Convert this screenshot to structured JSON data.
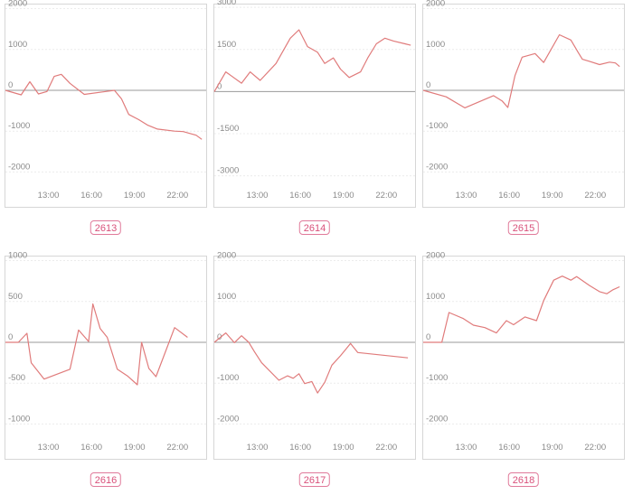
{
  "chart_data": [
    {
      "type": "line",
      "code": "2613",
      "ylim": [
        -2300,
        2100
      ],
      "yticks": [
        2000,
        1000,
        0,
        -1000,
        -2000
      ],
      "xlim": [
        10,
        24
      ],
      "xticks": [
        "13:00",
        "16:00",
        "19:00",
        "22:00"
      ],
      "grid": true,
      "line_color": "#e07b7b",
      "x": [
        10,
        11.1,
        11.7,
        12.3,
        12.9,
        13.4,
        13.9,
        14.5,
        15.5,
        17,
        17.6,
        18.1,
        18.6,
        19.3,
        19.9,
        20.6,
        21.8,
        22.4,
        23.3,
        23.7
      ],
      "y": [
        0,
        -110,
        210,
        -90,
        -30,
        340,
        390,
        170,
        -100,
        -30,
        0,
        -210,
        -590,
        -720,
        -850,
        -950,
        -1000,
        -1010,
        -1100,
        -1200
      ]
    },
    {
      "type": "line",
      "code": "2614",
      "ylim": [
        -3300,
        3100
      ],
      "yticks": [
        3000,
        1500,
        0,
        -1500,
        -3000
      ],
      "xlim": [
        10,
        24
      ],
      "xticks": [
        "13:00",
        "16:00",
        "19:00",
        "22:00"
      ],
      "grid": true,
      "line_color": "#e07b7b",
      "x": [
        10,
        10.8,
        11.9,
        12.5,
        13.2,
        14.3,
        15.3,
        15.9,
        16.5,
        17.2,
        17.7,
        18.3,
        18.8,
        19.4,
        20.2,
        20.7,
        21.3,
        21.9,
        22.5,
        23.3,
        23.7
      ],
      "y": [
        0,
        700,
        300,
        700,
        400,
        1000,
        1900,
        2200,
        1600,
        1400,
        1000,
        1200,
        800,
        500,
        700,
        1200,
        1700,
        1900,
        1800,
        1700,
        1650
      ]
    },
    {
      "type": "line",
      "code": "2615",
      "ylim": [
        -2300,
        2100
      ],
      "yticks": [
        2000,
        1000,
        0,
        -1000,
        -2000
      ],
      "xlim": [
        10,
        24
      ],
      "xticks": [
        "13:00",
        "16:00",
        "19:00",
        "22:00"
      ],
      "grid": true,
      "line_color": "#e07b7b",
      "x": [
        10,
        11.6,
        12.9,
        14.9,
        15.5,
        15.9,
        16.4,
        16.9,
        17.8,
        18.4,
        19.5,
        20.3,
        20.8,
        21.1,
        21.6,
        22.3,
        23,
        23.4,
        23.7
      ],
      "y": [
        0,
        -160,
        -430,
        -130,
        -260,
        -420,
        360,
        810,
        900,
        680,
        1360,
        1230,
        930,
        760,
        710,
        630,
        690,
        670,
        580
      ]
    },
    {
      "type": "line",
      "code": "2616",
      "ylim": [
        -1150,
        1050
      ],
      "yticks": [
        1000,
        500,
        0,
        -500,
        -1000
      ],
      "xlim": [
        10,
        24
      ],
      "xticks": [
        "13:00",
        "16:00",
        "19:00",
        "22:00"
      ],
      "grid": true,
      "line_color": "#e07b7b",
      "x": [
        10,
        10.9,
        11.5,
        11.8,
        12.7,
        14.5,
        15.1,
        15.8,
        16.1,
        16.6,
        17.1,
        17.8,
        18.5,
        19.2,
        19.5,
        20,
        20.5,
        21.8,
        22.7
      ],
      "y": [
        0,
        0,
        110,
        -250,
        -450,
        -330,
        150,
        10,
        470,
        170,
        60,
        -330,
        -410,
        -520,
        0,
        -320,
        -420,
        180,
        60
      ]
    },
    {
      "type": "line",
      "code": "2617",
      "ylim": [
        -2300,
        2100
      ],
      "yticks": [
        2000,
        1000,
        0,
        -1000,
        -2000
      ],
      "xlim": [
        10,
        24
      ],
      "xticks": [
        "13:00",
        "16:00",
        "19:00",
        "22:00"
      ],
      "grid": true,
      "line_color": "#e07b7b",
      "x": [
        10,
        10.8,
        11.4,
        11.9,
        12.4,
        12.8,
        13.3,
        14.5,
        15.1,
        15.5,
        15.9,
        16.3,
        16.8,
        17.2,
        17.7,
        18.2,
        18.8,
        19.5,
        20,
        23.5
      ],
      "y": [
        0,
        230,
        -10,
        160,
        0,
        -230,
        -500,
        -930,
        -820,
        -880,
        -770,
        -1010,
        -960,
        -1240,
        -980,
        -560,
        -330,
        -30,
        -250,
        -380
      ]
    },
    {
      "type": "line",
      "code": "2618",
      "ylim": [
        -2300,
        2100
      ],
      "yticks": [
        2000,
        1000,
        0,
        -1000,
        -2000
      ],
      "xlim": [
        10,
        24
      ],
      "xticks": [
        "13:00",
        "16:00",
        "19:00",
        "22:00"
      ],
      "grid": true,
      "line_color": "#e07b7b",
      "x": [
        10,
        11.3,
        11.8,
        12.8,
        13.5,
        14.3,
        15.1,
        15.8,
        16.3,
        17.1,
        17.9,
        18.4,
        19.1,
        19.7,
        20.3,
        20.7,
        21.6,
        22.3,
        22.8,
        23.2,
        23.7
      ],
      "y": [
        0,
        0,
        730,
        580,
        420,
        360,
        230,
        530,
        430,
        620,
        530,
        1020,
        1520,
        1620,
        1520,
        1610,
        1390,
        1240,
        1190,
        1280,
        1360
      ]
    }
  ]
}
